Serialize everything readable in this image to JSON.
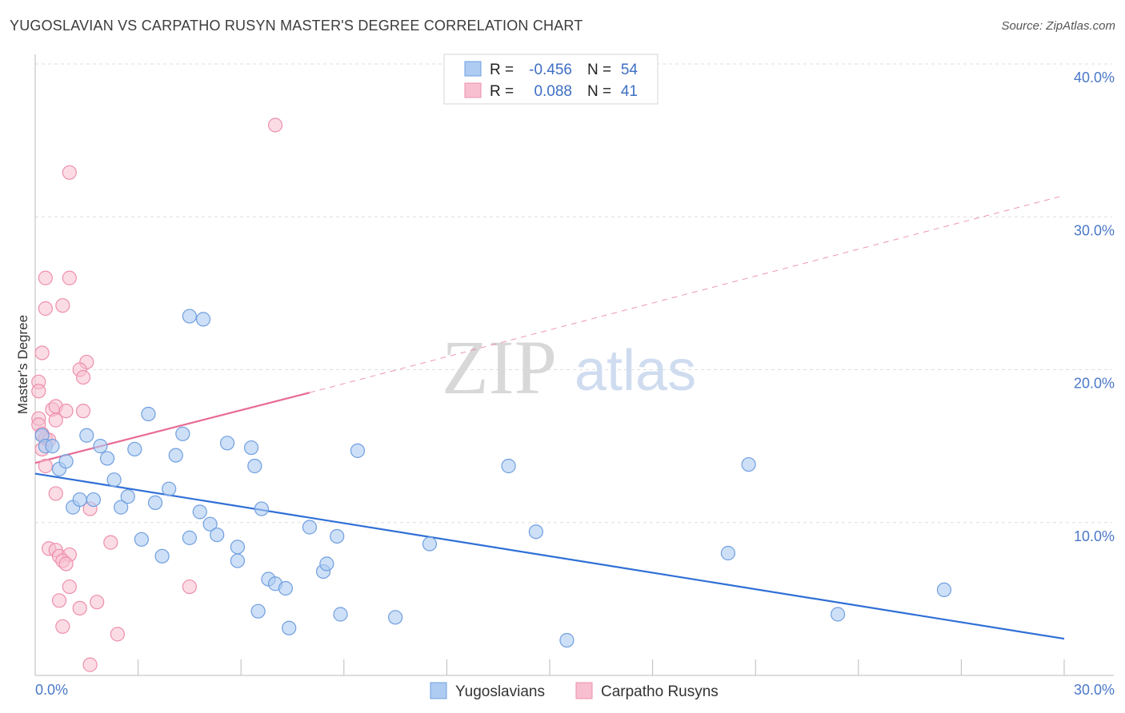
{
  "title": "YUGOSLAVIAN VS CARPATHO RUSYN MASTER'S DEGREE CORRELATION CHART",
  "source": "Source: ZipAtlas.com",
  "watermark": {
    "zip": "ZIP",
    "atlas": "atlas"
  },
  "colors": {
    "blue_fill": "#aecbf2",
    "blue_stroke": "#6f9fe0",
    "blue_line": "#2f6fd6",
    "pink_fill": "#f7bfd0",
    "pink_stroke": "#ee8fab",
    "pink_line": "#e86a94",
    "grid": "#dddddd",
    "tick_text": "#4a78c8"
  },
  "stats": {
    "row1": {
      "r_label": "R =",
      "r_value": "-0.456",
      "n_label": "N =",
      "n_value": "54"
    },
    "row2": {
      "r_label": "R =",
      "r_value": "0.088",
      "n_label": "N =",
      "n_value": "41"
    }
  },
  "legend": {
    "series1": "Yugoslavians",
    "series2": "Carpatho Rusyns"
  },
  "chart_data": {
    "type": "scatter",
    "title": "YUGOSLAVIAN VS CARPATHO RUSYN MASTER'S DEGREE CORRELATION CHART",
    "xlabel": "",
    "ylabel": "Master's Degree",
    "xlim": [
      0,
      30
    ],
    "ylim": [
      0,
      40
    ],
    "x_tick_labels": [
      "0.0%",
      "30.0%"
    ],
    "y_ticks": [
      10,
      20,
      30,
      40
    ],
    "y_tick_labels": [
      "10.0%",
      "20.0%",
      "30.0%",
      "40.0%"
    ],
    "grid": true,
    "legend_position": "bottom-center",
    "series": [
      {
        "name": "Yugoslavians",
        "r": -0.456,
        "n": 54,
        "trend": {
          "x": [
            0,
            30
          ],
          "y": [
            13.2,
            2.4
          ],
          "style": "solid"
        },
        "points": [
          [
            0.2,
            15.7
          ],
          [
            0.3,
            15.0
          ],
          [
            0.5,
            15.0
          ],
          [
            0.7,
            13.5
          ],
          [
            0.9,
            14.0
          ],
          [
            1.1,
            11.0
          ],
          [
            1.3,
            11.5
          ],
          [
            1.5,
            15.7
          ],
          [
            1.7,
            11.5
          ],
          [
            1.9,
            15.0
          ],
          [
            2.1,
            14.2
          ],
          [
            2.3,
            12.8
          ],
          [
            2.5,
            11.0
          ],
          [
            2.7,
            11.7
          ],
          [
            2.9,
            14.8
          ],
          [
            3.1,
            8.9
          ],
          [
            3.3,
            17.1
          ],
          [
            3.5,
            11.3
          ],
          [
            3.7,
            7.8
          ],
          [
            3.9,
            12.2
          ],
          [
            4.1,
            14.4
          ],
          [
            4.3,
            15.8
          ],
          [
            4.5,
            9.0
          ],
          [
            4.8,
            10.7
          ],
          [
            5.1,
            9.9
          ],
          [
            5.3,
            9.2
          ],
          [
            5.6,
            15.2
          ],
          [
            5.9,
            8.4
          ],
          [
            5.9,
            7.5
          ],
          [
            6.3,
            14.9
          ],
          [
            6.4,
            13.7
          ],
          [
            6.6,
            10.9
          ],
          [
            6.5,
            4.2
          ],
          [
            6.8,
            6.3
          ],
          [
            7.0,
            6.0
          ],
          [
            7.3,
            5.7
          ],
          [
            7.4,
            3.1
          ],
          [
            8.0,
            9.7
          ],
          [
            8.4,
            6.8
          ],
          [
            8.5,
            7.3
          ],
          [
            8.8,
            9.1
          ],
          [
            8.9,
            4.0
          ],
          [
            9.4,
            14.7
          ],
          [
            10.5,
            3.8
          ],
          [
            11.5,
            8.6
          ],
          [
            13.8,
            13.7
          ],
          [
            14.6,
            9.4
          ],
          [
            15.5,
            2.3
          ],
          [
            20.2,
            8.0
          ],
          [
            20.8,
            13.8
          ],
          [
            23.4,
            4.0
          ],
          [
            26.5,
            5.6
          ],
          [
            4.5,
            23.5
          ],
          [
            4.9,
            23.3
          ]
        ]
      },
      {
        "name": "Carpatho Rusyns",
        "r": 0.088,
        "n": 41,
        "trend": {
          "x": [
            0,
            8
          ],
          "y": [
            13.9,
            18.5
          ],
          "style": "solid",
          "extend_dashed_to": [
            30,
            31.4
          ]
        },
        "points": [
          [
            7.0,
            36.0
          ],
          [
            1.0,
            32.9
          ],
          [
            0.3,
            26.0
          ],
          [
            1.0,
            26.0
          ],
          [
            0.3,
            24.0
          ],
          [
            0.8,
            24.2
          ],
          [
            0.2,
            21.1
          ],
          [
            1.5,
            20.5
          ],
          [
            1.3,
            20.0
          ],
          [
            1.4,
            19.5
          ],
          [
            0.1,
            19.2
          ],
          [
            0.1,
            18.6
          ],
          [
            0.5,
            17.4
          ],
          [
            0.6,
            17.6
          ],
          [
            0.9,
            17.3
          ],
          [
            1.4,
            17.3
          ],
          [
            0.6,
            16.7
          ],
          [
            0.1,
            16.8
          ],
          [
            0.1,
            16.4
          ],
          [
            0.2,
            15.8
          ],
          [
            0.3,
            15.5
          ],
          [
            0.3,
            13.7
          ],
          [
            0.6,
            11.9
          ],
          [
            1.6,
            10.9
          ],
          [
            2.2,
            8.7
          ],
          [
            0.4,
            8.3
          ],
          [
            0.6,
            8.2
          ],
          [
            0.7,
            7.8
          ],
          [
            1.0,
            7.9
          ],
          [
            0.8,
            7.5
          ],
          [
            0.9,
            7.3
          ],
          [
            4.5,
            5.8
          ],
          [
            1.0,
            5.8
          ],
          [
            0.7,
            4.9
          ],
          [
            1.3,
            4.4
          ],
          [
            1.8,
            4.8
          ],
          [
            0.8,
            3.2
          ],
          [
            2.4,
            2.7
          ],
          [
            1.6,
            0.7
          ],
          [
            0.4,
            15.4
          ],
          [
            0.2,
            14.8
          ]
        ]
      }
    ]
  }
}
